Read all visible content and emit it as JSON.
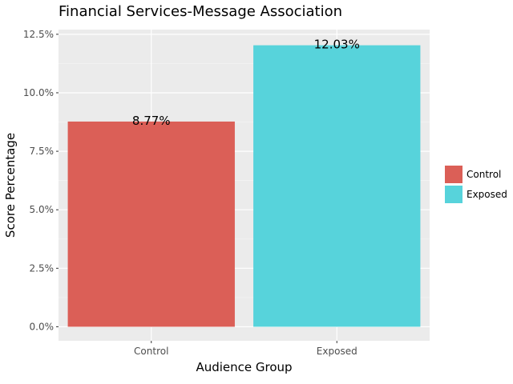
{
  "chart_data": {
    "type": "bar",
    "title": "Financial Services-Message Association",
    "xlabel": "Audience Group",
    "ylabel": "Score Percentage",
    "categories": [
      "Control",
      "Exposed"
    ],
    "values": [
      8.77,
      12.03
    ],
    "data_labels": [
      "8.77%",
      "12.03%"
    ],
    "colors": [
      "#db5f57",
      "#57d3db"
    ],
    "ylim": [
      -0.6,
      12.7
    ],
    "yticks": [
      0,
      2.5,
      5,
      7.5,
      10,
      12.5
    ],
    "ytick_labels": [
      "0.0%",
      "2.5%",
      "5.0%",
      "7.5%",
      "10.0%",
      "12.5%"
    ],
    "grid": true,
    "legend": {
      "placement": "right",
      "entries": [
        "Control",
        "Exposed"
      ]
    }
  }
}
